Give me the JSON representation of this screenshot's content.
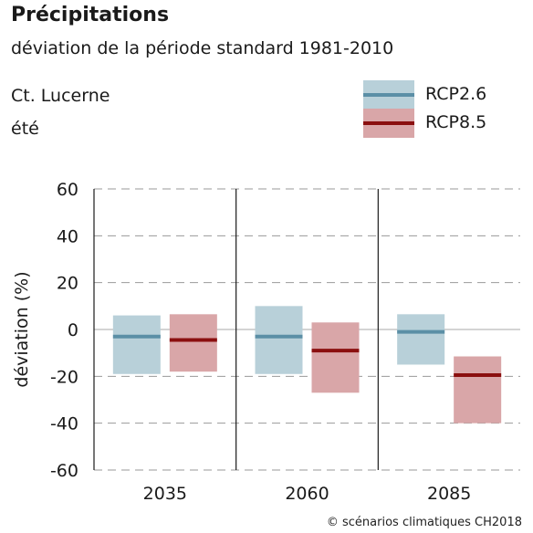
{
  "header": {
    "title": "Précipitations",
    "subtitle": "déviation de la période standard 1981-2010",
    "region": "Ct. Lucerne",
    "season": "été"
  },
  "credit": "© scénarios climatiques CH2018",
  "colors": {
    "rcp26_box": "#b8d0d9",
    "rcp26_line": "#5b8fa6",
    "rcp85_box": "#d9a6a8",
    "rcp85_line": "#8b0f0f",
    "grid": "#999999",
    "zero": "#aaaaaa"
  },
  "chart_data": {
    "type": "bar",
    "title": "Précipitations",
    "subtitle": "déviation de la période standard 1981-2010",
    "ylabel": "déviation (%)",
    "xlabel": "",
    "ylim": [
      -60,
      60
    ],
    "yticks": [
      -60,
      -40,
      -20,
      0,
      20,
      40,
      60
    ],
    "grid": true,
    "legend": "top-right",
    "categories": [
      "2035",
      "2060",
      "2085"
    ],
    "series": [
      {
        "name": "RCP2.6",
        "low": [
          -19,
          -19,
          -15
        ],
        "median": [
          -3,
          -3,
          -1
        ],
        "high": [
          6,
          10,
          6.5
        ]
      },
      {
        "name": "RCP8.5",
        "low": [
          -18,
          -27,
          -40
        ],
        "median": [
          -4.5,
          -9,
          -19.5
        ],
        "high": [
          6.5,
          3,
          -11.5
        ]
      }
    ]
  }
}
